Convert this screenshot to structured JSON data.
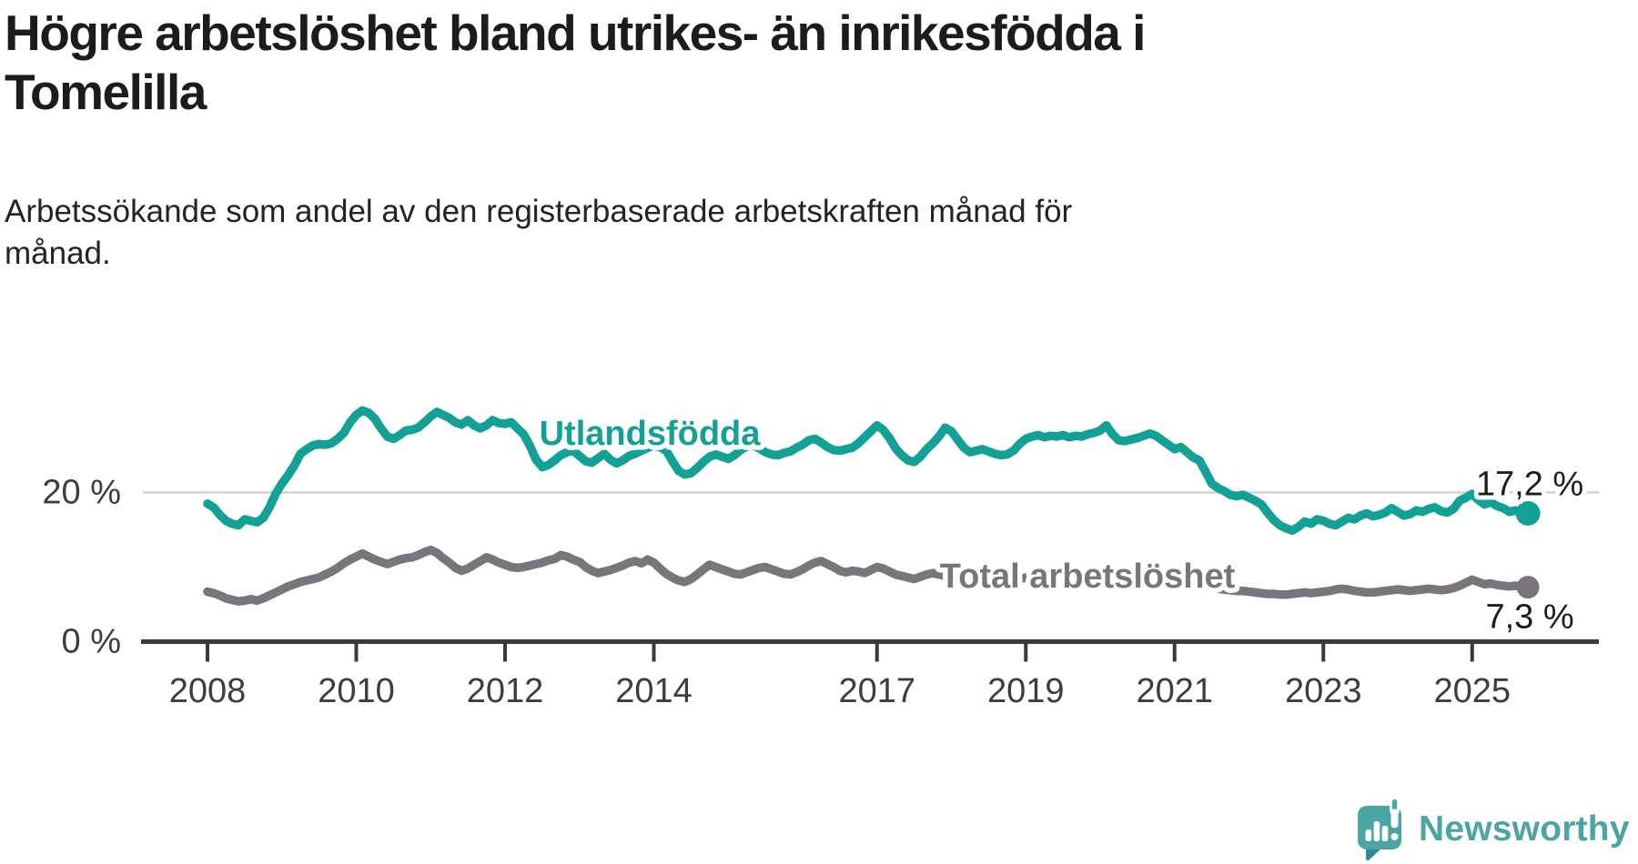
{
  "header": {
    "title_lines": [
      "Högre arbetslöshet bland utrikes- än inrikesfödda i",
      "Tomelilla"
    ],
    "subtitle_lines": [
      "Arbetssökande som andel av den registerbaserade arbetskraften månad för",
      "månad."
    ]
  },
  "footer": {
    "brand": "Newsworthy",
    "brand_color": "#4ba5a2",
    "brand_tail_color": "#2e8c93"
  },
  "colors": {
    "axis": "#3a3a3a",
    "tick_text": "#3d3d3d",
    "gridline": "#d9d9d9",
    "value_label": "#1d1d1d",
    "background": "#ffffff"
  },
  "chart_data": {
    "type": "line",
    "title": "Högre arbetslöshet bland utrikes- än inrikesfödda i Tomelilla",
    "subtitle": "Arbetssökande som andel av den registerbaserade arbetskraften månad för månad.",
    "unit": "%",
    "x_axis": {
      "ticks": [
        2008,
        2010,
        2012,
        2014,
        2017,
        2019,
        2021,
        2023,
        2025
      ],
      "labels": [
        "2008",
        "2010",
        "2012",
        "2014",
        "2017",
        "2019",
        "2021",
        "2023",
        "2025"
      ],
      "range_years": [
        2007.1,
        2026.7
      ]
    },
    "y_axis": {
      "ticks": [
        {
          "value": 0,
          "label": "0 %",
          "gridline": false
        },
        {
          "value": 20,
          "label": "20 %",
          "gridline": true
        }
      ],
      "range": [
        0,
        38
      ]
    },
    "legend_position": "inline-labels",
    "grid": "single-horizontal-at-20",
    "series": [
      {
        "name": "Utlandsfödda",
        "color": "#12a194",
        "end_label": "17,2 %",
        "end_value": 17.2,
        "start_year": 2008,
        "step_months": 1,
        "values": [
          18.5,
          18.0,
          17.0,
          16.2,
          15.8,
          15.6,
          16.4,
          16.2,
          16.0,
          16.6,
          18.0,
          19.8,
          21.2,
          22.3,
          23.6,
          25.2,
          25.8,
          26.3,
          26.5,
          26.4,
          26.6,
          27.2,
          28.0,
          29.4,
          30.4,
          31.0,
          30.7,
          29.9,
          28.6,
          27.5,
          27.2,
          27.7,
          28.3,
          28.4,
          28.7,
          29.4,
          30.2,
          30.8,
          30.4,
          30.0,
          29.4,
          29.1,
          29.7,
          29.0,
          28.6,
          29.0,
          29.7,
          29.3,
          29.2,
          29.4,
          28.6,
          27.8,
          26.3,
          24.4,
          23.4,
          23.7,
          24.3,
          25.0,
          25.4,
          25.6,
          24.9,
          24.2,
          24.0,
          24.6,
          25.2,
          24.4,
          23.9,
          24.3,
          24.9,
          25.2,
          25.6,
          26.0,
          26.3,
          26.1,
          25.6,
          24.2,
          22.9,
          22.4,
          22.6,
          23.3,
          24.1,
          24.8,
          25.1,
          24.8,
          24.5,
          25.0,
          25.7,
          26.2,
          26.4,
          25.9,
          25.4,
          25.1,
          25.0,
          25.3,
          25.5,
          26.0,
          26.4,
          27.0,
          27.2,
          26.7,
          26.1,
          25.7,
          25.6,
          25.8,
          26.0,
          26.6,
          27.4,
          28.2,
          29.0,
          28.4,
          27.3,
          25.9,
          25.0,
          24.3,
          24.1,
          24.8,
          25.8,
          26.6,
          27.5,
          28.7,
          28.2,
          27.1,
          26.0,
          25.4,
          25.6,
          25.8,
          25.5,
          25.2,
          25.0,
          25.1,
          25.6,
          26.5,
          27.2,
          27.5,
          27.7,
          27.4,
          27.6,
          27.5,
          27.7,
          27.4,
          27.6,
          27.5,
          27.8,
          28.0,
          28.3,
          29.0,
          27.8,
          27.0,
          26.9,
          27.1,
          27.3,
          27.6,
          27.9,
          27.6,
          27.0,
          26.4,
          25.8,
          26.1,
          25.4,
          24.7,
          24.3,
          22.8,
          21.2,
          20.6,
          20.2,
          19.7,
          19.5,
          19.7,
          19.3,
          18.9,
          18.4,
          17.3,
          16.3,
          15.6,
          15.2,
          14.9,
          15.4,
          16.1,
          15.8,
          16.4,
          16.2,
          15.8,
          15.6,
          16.1,
          16.6,
          16.4,
          16.9,
          17.2,
          16.8,
          17.0,
          17.3,
          17.9,
          17.4,
          16.9,
          17.1,
          17.6,
          17.4,
          17.8,
          18.0,
          17.5,
          17.3,
          17.8,
          18.9,
          19.3,
          19.8,
          19.0,
          18.4,
          18.7,
          18.2,
          17.9,
          17.4,
          17.6,
          17.3,
          17.2
        ]
      },
      {
        "name": "Total arbetslöshet",
        "color": "#7a747c",
        "end_label": "7,3 %",
        "end_value": 7.3,
        "start_year": 2008,
        "step_months": 1,
        "values": [
          6.7,
          6.5,
          6.2,
          5.8,
          5.6,
          5.4,
          5.5,
          5.7,
          5.5,
          5.8,
          6.2,
          6.6,
          7.0,
          7.4,
          7.7,
          8.0,
          8.2,
          8.4,
          8.6,
          9.0,
          9.4,
          9.9,
          10.5,
          11.0,
          11.4,
          11.8,
          11.4,
          11.0,
          10.7,
          10.4,
          10.7,
          11.0,
          11.2,
          11.3,
          11.6,
          12.0,
          12.3,
          11.9,
          11.2,
          10.6,
          9.9,
          9.5,
          9.8,
          10.3,
          10.8,
          11.3,
          11.0,
          10.6,
          10.3,
          10.0,
          9.9,
          10.0,
          10.2,
          10.4,
          10.6,
          10.9,
          11.1,
          11.6,
          11.4,
          11.0,
          10.7,
          10.0,
          9.5,
          9.2,
          9.4,
          9.6,
          9.9,
          10.2,
          10.6,
          10.8,
          10.5,
          11.0,
          10.6,
          9.8,
          9.1,
          8.6,
          8.2,
          8.0,
          8.4,
          9.0,
          9.7,
          10.3,
          10.0,
          9.7,
          9.4,
          9.1,
          9.0,
          9.3,
          9.6,
          9.9,
          10.0,
          9.7,
          9.4,
          9.1,
          9.0,
          9.3,
          9.7,
          10.2,
          10.6,
          10.8,
          10.4,
          10.0,
          9.5,
          9.3,
          9.5,
          9.4,
          9.2,
          9.6,
          10.0,
          9.8,
          9.4,
          9.0,
          8.8,
          8.6,
          8.4,
          8.7,
          9.0,
          9.2,
          9.0,
          8.8,
          8.6,
          8.4,
          8.2,
          8.0,
          8.2,
          8.4,
          8.6,
          8.4,
          8.2,
          8.0,
          8.2,
          8.4,
          8.6,
          8.4,
          8.2,
          8.0,
          7.9,
          8.0,
          8.2,
          8.1,
          8.0,
          8.2,
          8.4,
          8.6,
          8.8,
          9.2,
          9.6,
          9.4,
          9.2,
          9.3,
          9.4,
          9.2,
          9.0,
          8.8,
          8.6,
          8.5,
          8.4,
          8.2,
          8.0,
          7.8,
          7.6,
          7.4,
          7.2,
          7.1,
          7.0,
          6.9,
          6.8,
          6.8,
          6.7,
          6.6,
          6.5,
          6.4,
          6.4,
          6.3,
          6.3,
          6.4,
          6.5,
          6.6,
          6.5,
          6.6,
          6.7,
          6.8,
          7.0,
          7.1,
          7.0,
          6.8,
          6.7,
          6.6,
          6.6,
          6.7,
          6.8,
          6.9,
          7.0,
          6.9,
          6.8,
          6.9,
          7.0,
          7.1,
          7.0,
          6.9,
          7.0,
          7.2,
          7.5,
          7.9,
          8.3,
          8.0,
          7.7,
          7.8,
          7.6,
          7.5,
          7.4,
          7.5,
          7.4,
          7.3
        ]
      }
    ]
  }
}
